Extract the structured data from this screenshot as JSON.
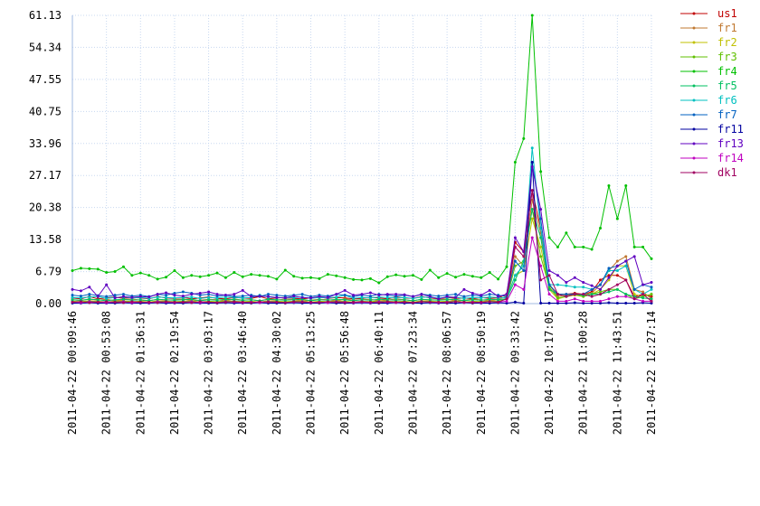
{
  "chart_data": {
    "type": "line",
    "categories": [
      "2011-04-22 00:09:46",
      null,
      null,
      null,
      "2011-04-22 00:53:08",
      null,
      null,
      null,
      "2011-04-22 01:36:31",
      null,
      null,
      null,
      "2011-04-22 02:19:54",
      null,
      null,
      null,
      "2011-04-22 03:03:17",
      null,
      null,
      null,
      "2011-04-22 03:46:40",
      null,
      null,
      null,
      "2011-04-22 04:30:02",
      null,
      null,
      null,
      "2011-04-22 05:13:25",
      null,
      null,
      null,
      "2011-04-22 05:56:48",
      null,
      null,
      null,
      "2011-04-22 06:40:11",
      null,
      null,
      null,
      "2011-04-22 07:23:34",
      null,
      null,
      null,
      "2011-04-22 08:06:57",
      null,
      null,
      null,
      "2011-04-22 08:50:19",
      null,
      null,
      null,
      "2011-04-22 09:33:42",
      null,
      null,
      null,
      "2011-04-22 10:17:05",
      null,
      null,
      null,
      "2011-04-22 11:00:28",
      null,
      null,
      null,
      "2011-04-22 11:43:51",
      null,
      null,
      null,
      "2011-04-22 12:27:14"
    ],
    "ylim": [
      0,
      61.13
    ],
    "yticks": [
      {
        "value": 0,
        "label": "0.00"
      },
      6.79,
      13.58,
      20.38,
      27.17,
      33.96,
      40.75,
      47.55,
      54.34,
      61.13
    ],
    "grid": true,
    "legend": "right",
    "series": [
      {
        "name": "us1",
        "color": "#c00000",
        "values": [
          1.2,
          1,
          1.5,
          1,
          1.2,
          1.4,
          1.1,
          1.3,
          1.2,
          1,
          1.5,
          1.2,
          1.1,
          1.3,
          1,
          1.2,
          1.4,
          1.1,
          1,
          1.3,
          1.2,
          1.1,
          1.5,
          1,
          1.2,
          1.3,
          1.1,
          1,
          1.2,
          1.4,
          1.1,
          1.3,
          1.2,
          1,
          1.1,
          1.3,
          1.2,
          1,
          1.4,
          1.2,
          1.1,
          1.5,
          1.2,
          1,
          1.3,
          1.1,
          1.2,
          1,
          1.3,
          1.1,
          1.2,
          2,
          13,
          11,
          24,
          16,
          4,
          2,
          2,
          2.2,
          2,
          2.5,
          5,
          6,
          6,
          5,
          1.5,
          2,
          1.5
        ]
      },
      {
        "name": "fr1",
        "color": "#c07830",
        "values": [
          0.8,
          0.6,
          1,
          0.7,
          0.9,
          0.6,
          0.8,
          1,
          0.7,
          0.6,
          0.9,
          0.7,
          0.8,
          1,
          0.6,
          0.7,
          0.9,
          0.8,
          0.6,
          1,
          0.7,
          0.8,
          0.6,
          0.9,
          0.7,
          1,
          0.8,
          0.6,
          0.7,
          0.9,
          0.8,
          0.6,
          1,
          0.7,
          0.8,
          0.9,
          0.6,
          0.7,
          1,
          0.8,
          0.6,
          0.9,
          0.7,
          0.8,
          1,
          0.6,
          0.7,
          0.9,
          0.8,
          0.6,
          0.9,
          1.5,
          10,
          8,
          22,
          15,
          4,
          1.5,
          1.8,
          2,
          2,
          2.2,
          4,
          7,
          9,
          10,
          3,
          2.5,
          1
        ]
      },
      {
        "name": "fr2",
        "color": "#c0c000",
        "values": [
          0.5,
          0.4,
          0.6,
          0.5,
          0.3,
          0.5,
          0.6,
          0.4,
          0.5,
          0.3,
          0.6,
          0.5,
          0.4,
          0.5,
          0.6,
          0.3,
          0.5,
          0.4,
          0.6,
          0.5,
          0.4,
          0.5,
          0.3,
          0.6,
          0.5,
          0.4,
          0.5,
          0.6,
          0.3,
          0.5,
          0.4,
          0.6,
          0.5,
          0.3,
          0.5,
          0.4,
          0.6,
          0.5,
          0.4,
          0.5,
          0.3,
          0.6,
          0.5,
          0.4,
          0.5,
          0.6,
          0.3,
          0.5,
          0.4,
          0.6,
          0.5,
          1,
          6,
          7,
          18,
          12,
          3,
          1,
          1.5,
          1.8,
          1.5,
          2,
          3,
          5,
          8,
          8,
          2,
          1.5,
          2
        ]
      },
      {
        "name": "fr3",
        "color": "#60c000",
        "values": [
          0.4,
          0.3,
          0.5,
          0.4,
          0.2,
          0.4,
          0.5,
          0.3,
          0.4,
          0.2,
          0.5,
          0.4,
          0.3,
          0.4,
          0.5,
          0.2,
          0.4,
          0.3,
          0.5,
          0.4,
          0.3,
          0.4,
          0.2,
          0.5,
          0.4,
          0.3,
          0.4,
          0.5,
          0.2,
          0.4,
          0.3,
          0.5,
          0.4,
          0.2,
          0.4,
          0.3,
          0.5,
          0.4,
          0.3,
          0.4,
          0.2,
          0.5,
          0.4,
          0.3,
          0.4,
          0.5,
          0.2,
          0.4,
          0.3,
          0.5,
          0.4,
          1,
          8,
          9,
          20,
          10,
          3.5,
          1.2,
          1.5,
          2,
          1.5,
          2,
          2.5,
          3,
          3,
          2,
          1,
          1.5,
          2
        ]
      },
      {
        "name": "fr4",
        "color": "#00c000",
        "values": [
          7,
          7.5,
          7.4,
          7.3,
          6.6,
          6.8,
          7.8,
          6,
          6.5,
          6,
          5.2,
          5.6,
          7,
          5.5,
          6,
          5.7,
          6,
          6.5,
          5.5,
          6.6,
          5.7,
          6.2,
          6,
          5.8,
          5.2,
          7.1,
          5.8,
          5.4,
          5.5,
          5.3,
          6.2,
          5.9,
          5.5,
          5.1,
          5,
          5.3,
          4.4,
          5.7,
          6.1,
          5.8,
          6,
          5.1,
          7.1,
          5.5,
          6.4,
          5.6,
          6.2,
          5.8,
          5.5,
          6.6,
          5.2,
          7.8,
          30,
          35,
          61.13,
          28,
          14,
          12,
          15,
          12,
          12,
          11.5,
          16,
          25,
          18,
          25,
          12,
          12,
          9.5
        ]
      },
      {
        "name": "fr5",
        "color": "#00c060",
        "values": [
          0.8,
          0.7,
          0.9,
          0.8,
          0.6,
          0.8,
          0.9,
          0.7,
          0.8,
          0.6,
          0.9,
          0.8,
          0.7,
          0.8,
          0.9,
          0.6,
          0.8,
          0.7,
          0.9,
          0.8,
          0.7,
          0.8,
          0.6,
          0.9,
          0.8,
          0.7,
          0.8,
          0.9,
          0.6,
          0.8,
          0.7,
          0.9,
          0.8,
          0.6,
          0.8,
          0.7,
          0.9,
          0.8,
          0.7,
          0.8,
          0.6,
          0.9,
          0.8,
          0.7,
          0.8,
          0.9,
          0.6,
          0.8,
          0.7,
          0.9,
          0.8,
          1,
          5,
          9,
          20,
          14,
          3,
          2,
          1.5,
          2,
          1.8,
          2,
          2,
          2.5,
          3,
          2,
          1.5,
          1.2,
          1
        ]
      },
      {
        "name": "fr6",
        "color": "#00c0c0",
        "values": [
          1.3,
          1.2,
          1.4,
          1.5,
          1.1,
          1.3,
          1.4,
          1.2,
          1.3,
          1.1,
          1.4,
          1.3,
          1.2,
          1.3,
          1.4,
          1.1,
          1.3,
          1.2,
          1.4,
          1.3,
          1.2,
          1.3,
          1.8,
          1.4,
          1.3,
          1.2,
          1.3,
          1.4,
          1.1,
          1.3,
          1.2,
          1.4,
          1.8,
          1.1,
          1.3,
          1.2,
          1.4,
          1.3,
          1.2,
          1.3,
          1.1,
          1.4,
          1.3,
          1.2,
          1.3,
          1.4,
          1.1,
          1.3,
          1.2,
          1.4,
          1.3,
          1.2,
          6,
          8,
          33,
          16,
          4,
          4,
          3.8,
          3.5,
          3.5,
          3,
          4,
          7,
          7,
          8,
          3,
          2,
          3
        ]
      },
      {
        "name": "fr7",
        "color": "#0060c0",
        "values": [
          1.8,
          1.6,
          2,
          1.7,
          1.5,
          1.8,
          2,
          1.6,
          1.8,
          1.5,
          2,
          1.8,
          2.2,
          2.5,
          2.2,
          1.8,
          2,
          1.6,
          1.8,
          1.5,
          1.6,
          1.8,
          1.5,
          2,
          1.8,
          1.6,
          1.8,
          2,
          1.5,
          1.8,
          1.6,
          2,
          1.8,
          1.5,
          1.8,
          1.6,
          2,
          1.8,
          1.6,
          1.8,
          1.5,
          2,
          1.8,
          1.6,
          1.8,
          2,
          1.5,
          1.8,
          1.6,
          2,
          1.8,
          1.5,
          9,
          7,
          30,
          18,
          4,
          2,
          2,
          2,
          2,
          3,
          4,
          7.5,
          8,
          9,
          3,
          4,
          3.5
        ]
      },
      {
        "name": "fr11",
        "color": "#0000a0",
        "values": [
          0.1,
          0.1,
          0.2,
          0.1,
          0.1,
          0.1,
          0.2,
          0.1,
          0.1,
          0.1,
          0.2,
          0.1,
          0.1,
          0.1,
          0.2,
          0.1,
          0.1,
          0.1,
          0.2,
          0.1,
          0.1,
          0.1,
          0.2,
          0.1,
          0.1,
          0.1,
          0.2,
          0.1,
          0.1,
          0.1,
          0.2,
          0.1,
          0.1,
          0.1,
          0.2,
          0.1,
          0.1,
          0.1,
          0.2,
          0.1,
          0.1,
          0.1,
          0.2,
          0.1,
          0.1,
          0.1,
          0.2,
          0.1,
          0.1,
          0.1,
          0.2,
          0.1,
          0.3,
          0.1,
          30,
          0.1,
          0.1,
          0.1,
          0.1,
          0.2,
          0.1,
          0.1,
          0.1,
          0.2,
          0.1,
          0.1,
          0.1,
          0.2,
          0.1
        ]
      },
      {
        "name": "fr13",
        "color": "#6000c0",
        "values": [
          3,
          2.7,
          3.5,
          1.5,
          4,
          1.2,
          1.5,
          1.3,
          1.5,
          1.4,
          2,
          2.3,
          1.8,
          1.6,
          2,
          2.2,
          2.5,
          2,
          1.8,
          2,
          2.8,
          1.5,
          1.6,
          1.5,
          1.3,
          1.2,
          1.6,
          1.3,
          1.2,
          1.5,
          1.3,
          2,
          2.8,
          1.8,
          2,
          2.3,
          1.8,
          2,
          2,
          1.9,
          1.5,
          2,
          1.5,
          1,
          1.5,
          1.3,
          3,
          2.2,
          1.8,
          2.8,
          1.5,
          2,
          14,
          11,
          29,
          20,
          7,
          6,
          4.5,
          5.5,
          4.5,
          3.8,
          3,
          5.5,
          8,
          9,
          10,
          4,
          4.5
        ]
      },
      {
        "name": "fr14",
        "color": "#c000c0",
        "values": [
          0.3,
          0.2,
          0.4,
          0.3,
          0.2,
          0.3,
          0.4,
          0.2,
          0.3,
          0.2,
          0.4,
          0.3,
          0.2,
          0.3,
          0.4,
          0.2,
          0.3,
          0.2,
          0.4,
          0.3,
          0.2,
          0.3,
          0.2,
          0.4,
          0.3,
          0.2,
          0.3,
          0.4,
          0.2,
          0.3,
          0.2,
          0.4,
          0.3,
          0.2,
          0.3,
          0.2,
          0.4,
          0.3,
          0.2,
          0.3,
          0.2,
          0.4,
          0.3,
          0.2,
          0.3,
          0.4,
          0.2,
          0.3,
          0.2,
          0.4,
          0.3,
          0.5,
          4,
          3,
          14,
          8,
          2,
          0.5,
          0.5,
          1,
          0.5,
          0.5,
          0.5,
          1,
          1.5,
          1.5,
          1,
          0.5,
          0.5
        ]
      },
      {
        "name": "dk1",
        "color": "#a00060",
        "values": [
          0.3,
          0.4,
          0.2,
          0.3,
          0.4,
          0.3,
          0.2,
          0.4,
          0.3,
          0.3,
          0.2,
          0.4,
          0.3,
          0.3,
          0.2,
          0.4,
          0.3,
          0.2,
          0.3,
          0.4,
          0.3,
          0.2,
          0.4,
          0.3,
          0.3,
          0.2,
          0.4,
          0.3,
          0.3,
          0.2,
          0.4,
          0.3,
          0.2,
          0.3,
          0.4,
          0.3,
          0.2,
          0.4,
          0.3,
          0.3,
          0.2,
          0.4,
          0.3,
          0.3,
          0.2,
          0.4,
          0.3,
          0.2,
          0.3,
          0.4,
          0.3,
          1,
          12,
          10,
          24,
          5,
          6,
          2,
          1.5,
          2,
          2,
          1.5,
          2,
          3,
          4,
          5,
          1,
          2,
          0.5
        ]
      }
    ]
  }
}
